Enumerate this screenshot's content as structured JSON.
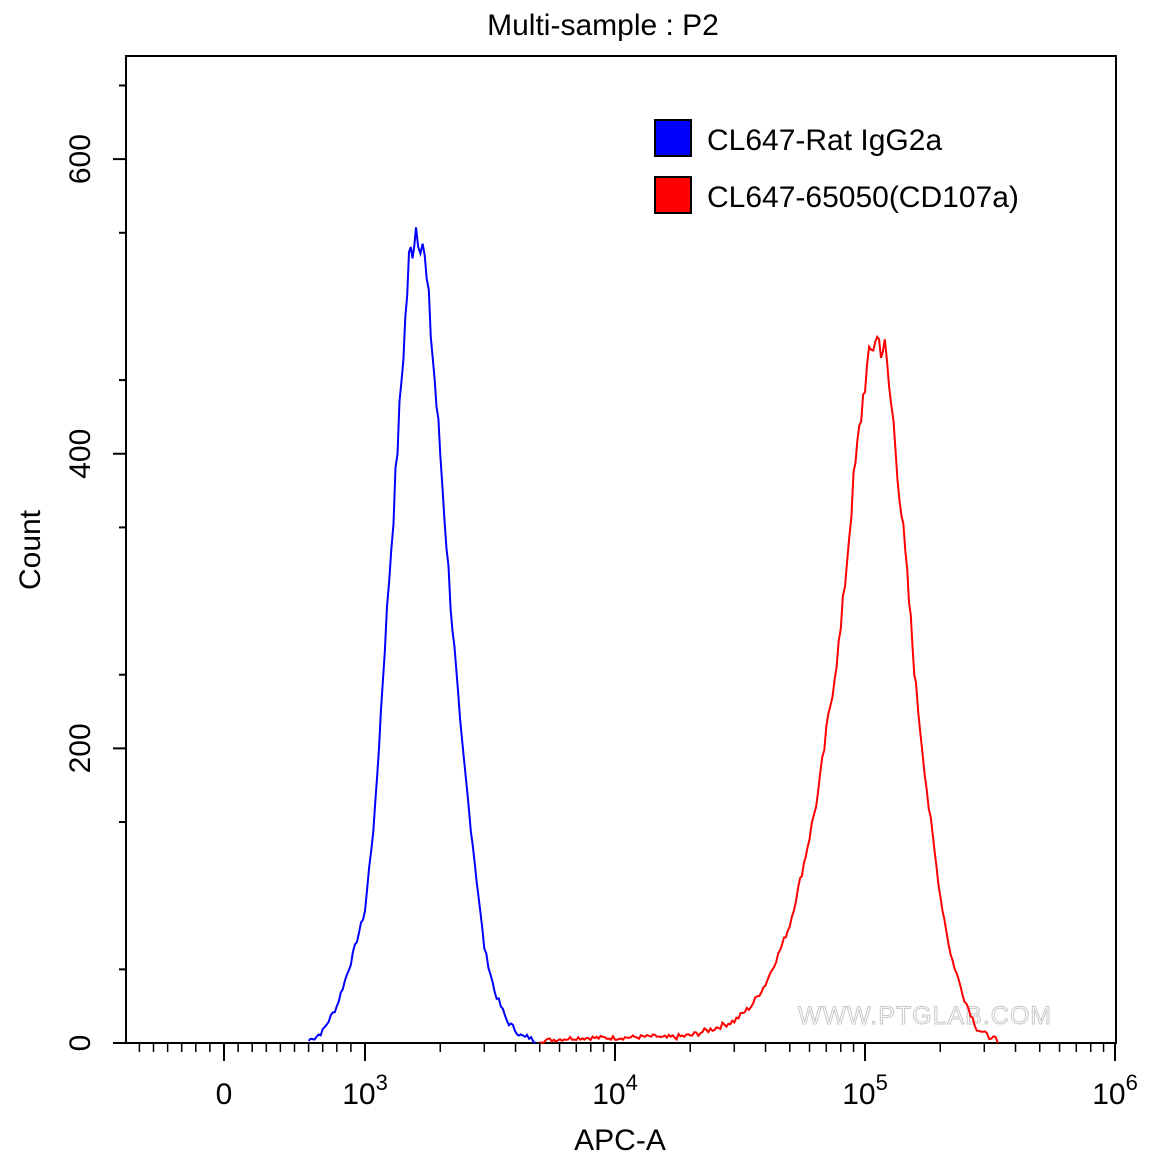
{
  "chart_data": {
    "type": "line",
    "title": "Multi-sample : P2",
    "xlabel": "APC-A",
    "ylabel": "Count",
    "xscale": "biexponential (log above 10^3)",
    "xlim": [
      -400,
      1000000
    ],
    "ylim": [
      0,
      670
    ],
    "y_ticks": [
      0,
      200,
      400,
      600
    ],
    "y_tick_labels": [
      "0",
      "200",
      "400",
      "600"
    ],
    "x_tick_labels": [
      {
        "value": 0,
        "base": "0",
        "exp": ""
      },
      {
        "value": 1000,
        "base": "10",
        "exp": "3"
      },
      {
        "value": 10000,
        "base": "10",
        "exp": "4"
      },
      {
        "value": 100000,
        "base": "10",
        "exp": "5"
      },
      {
        "value": 1000000,
        "base": "10",
        "exp": "6"
      }
    ],
    "legend_position": "top-right",
    "series": [
      {
        "name": "CL647-Rat IgG2a",
        "color": "#0000ff",
        "x": [
          600,
          700,
          800,
          900,
          1000,
          1100,
          1200,
          1300,
          1400,
          1500,
          1600,
          1700,
          1800,
          1900,
          2000,
          2200,
          2400,
          2600,
          2800,
          3000,
          3300,
          3700,
          4200,
          4800
        ],
        "y": [
          0,
          8,
          25,
          55,
          90,
          160,
          270,
          360,
          450,
          530,
          555,
          545,
          500,
          450,
          400,
          300,
          215,
          160,
          110,
          65,
          35,
          15,
          5,
          0
        ]
      },
      {
        "name": "CL647-65050(CD107a)",
        "color": "#ff0000",
        "x": [
          5000,
          7000,
          10000,
          15000,
          20000,
          25000,
          30000,
          35000,
          40000,
          45000,
          50000,
          55000,
          60000,
          65000,
          70000,
          80000,
          90000,
          100000,
          110000,
          120000,
          130000,
          140000,
          150000,
          160000,
          180000,
          200000,
          220000,
          250000,
          280000,
          320000,
          340000
        ],
        "y": [
          0,
          2,
          2,
          3,
          5,
          10,
          15,
          25,
          40,
          60,
          80,
          110,
          140,
          170,
          210,
          280,
          380,
          450,
          480,
          470,
          420,
          360,
          300,
          240,
          160,
          100,
          60,
          30,
          10,
          3,
          0
        ]
      }
    ]
  },
  "watermark": "WWW.PTGLAB.COM"
}
